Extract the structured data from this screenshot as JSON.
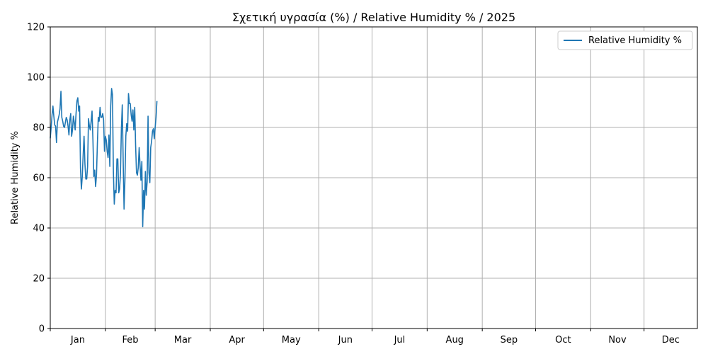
{
  "chart_data": {
    "type": "line",
    "title": "Σχετική υγρασία (%) / Relative Humidity % / 2025",
    "xlabel": "",
    "ylabel": "Relative Humidity %",
    "ylim": [
      0,
      120
    ],
    "yticks": [
      0,
      20,
      40,
      60,
      80,
      100,
      120
    ],
    "xlim": [
      "2025-01-01",
      "2025-12-31"
    ],
    "month_labels": [
      "Jan",
      "Feb",
      "Mar",
      "Apr",
      "May",
      "Jun",
      "Jul",
      "Aug",
      "Sep",
      "Oct",
      "Nov",
      "Dec"
    ],
    "grid": true,
    "legend": {
      "placement": "top-right"
    },
    "colors": {
      "line": "#1f77b4",
      "grid": "#b0b0b0",
      "axis": "#000000"
    },
    "series": [
      {
        "name": "Relative Humidity %",
        "start_date": "2025-01-01",
        "step_days": 0.5,
        "values": [
          75.7,
          80,
          85,
          88.5,
          84.5,
          81,
          80.5,
          74,
          82,
          83.5,
          85,
          87.5,
          94.4,
          84,
          82.5,
          80.5,
          80,
          82,
          84,
          83,
          80.5,
          77,
          83,
          85.5,
          76.5,
          79,
          84.5,
          82,
          79,
          85.5,
          90.5,
          91.8,
          86.5,
          88.5,
          63.5,
          55.5,
          60.5,
          69,
          76.5,
          65.5,
          59.5,
          59.5,
          64.5,
          83.5,
          80.5,
          79,
          82.5,
          86.5,
          75,
          60.5,
          63,
          56.5,
          61,
          73.5,
          84,
          82.5,
          88,
          84,
          84,
          85.5,
          83,
          70.5,
          76.5,
          75,
          70.5,
          68,
          77,
          64.5,
          88.5,
          95.5,
          93,
          62.5,
          49.5,
          55,
          54,
          67.5,
          67.5,
          54,
          55.5,
          62,
          79.5,
          89,
          67,
          47.5,
          59,
          76.5,
          81.5,
          78.5,
          93.5,
          89.5,
          89.5,
          85,
          82.5,
          87,
          79,
          88,
          73,
          62,
          61,
          64,
          72,
          65,
          59,
          66.5,
          40.5,
          55,
          47.5,
          62.5,
          53,
          58.5,
          84.5,
          62,
          58,
          72,
          74.5,
          78.5,
          79.5,
          75.5,
          80,
          84,
          90.5
        ]
      }
    ]
  }
}
